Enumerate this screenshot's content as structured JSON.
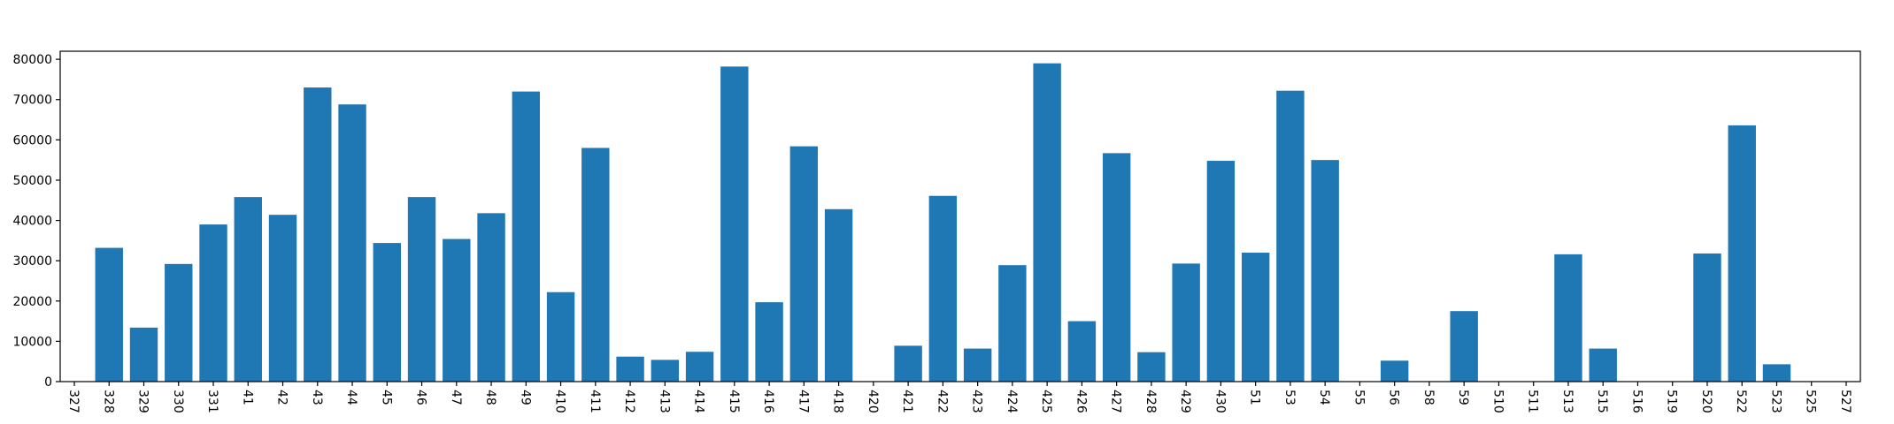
{
  "chart_data": {
    "type": "bar",
    "title": "",
    "xlabel": "",
    "ylabel": "",
    "ylim": [
      0,
      82000
    ],
    "yticks": [
      0,
      10000,
      20000,
      30000,
      40000,
      50000,
      60000,
      70000,
      80000
    ],
    "grid": false,
    "bar_color": "#1f77b4",
    "categories": [
      "327",
      "328",
      "329",
      "330",
      "331",
      "41",
      "42",
      "43",
      "44",
      "45",
      "46",
      "47",
      "48",
      "49",
      "410",
      "411",
      "412",
      "413",
      "414",
      "415",
      "416",
      "417",
      "418",
      "420",
      "421",
      "422",
      "423",
      "424",
      "425",
      "426",
      "427",
      "428",
      "429",
      "430",
      "51",
      "53",
      "54",
      "55",
      "56",
      "58",
      "59",
      "510",
      "511",
      "513",
      "515",
      "516",
      "519",
      "520",
      "522",
      "523",
      "525",
      "527"
    ],
    "values": [
      0,
      33200,
      13400,
      29200,
      39000,
      45800,
      41400,
      73000,
      68800,
      34400,
      45800,
      35400,
      41800,
      72000,
      22200,
      58000,
      6200,
      5400,
      7400,
      78200,
      19700,
      58400,
      42800,
      0,
      8900,
      46100,
      8200,
      28900,
      79000,
      15000,
      56700,
      7300,
      29300,
      54800,
      32000,
      72200,
      55000,
      0,
      5200,
      0,
      17500,
      0,
      0,
      31600,
      8200,
      0,
      0,
      31800,
      63600,
      4300,
      0,
      0
    ]
  }
}
